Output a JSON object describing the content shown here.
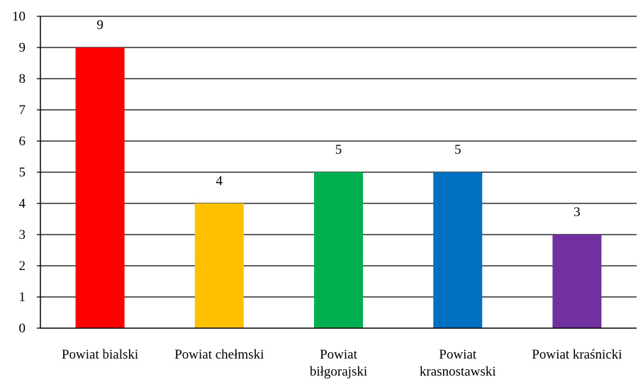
{
  "chart_data": {
    "type": "bar",
    "categories": [
      [
        "Powiat bialski"
      ],
      [
        "Powiat chełmski"
      ],
      [
        "Powiat",
        "biłgorajski"
      ],
      [
        "Powiat",
        "krasnostawski"
      ],
      [
        "Powiat kraśnicki"
      ]
    ],
    "values": [
      9,
      4,
      5,
      5,
      3
    ],
    "colors": [
      "#ff0000",
      "#ffc000",
      "#00b050",
      "#0070c0",
      "#7030a0"
    ],
    "ylim": [
      0,
      10
    ],
    "yticks": [
      0,
      1,
      2,
      3,
      4,
      5,
      6,
      7,
      8,
      9,
      10
    ],
    "grid": true,
    "data_labels": true,
    "title": "",
    "xlabel": "",
    "ylabel": ""
  }
}
